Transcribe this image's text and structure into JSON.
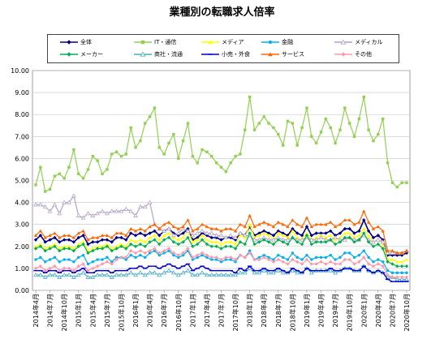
{
  "chart_data": {
    "type": "line",
    "title": "業種別の転職求人倍率",
    "xlabel": "",
    "ylabel": "",
    "ylim": [
      0,
      10
    ],
    "yticks": [
      "0.00",
      "1.00",
      "2.00",
      "3.00",
      "4.00",
      "5.00",
      "6.00",
      "7.00",
      "8.00",
      "9.00",
      "10.00"
    ],
    "grid": "horizontal",
    "legend_position": "top",
    "x": [
      "2014年4月",
      "2014年5月",
      "2014年6月",
      "2014年7月",
      "2014年8月",
      "2014年9月",
      "2014年10月",
      "2014年11月",
      "2014年12月",
      "2015年1月",
      "2015年2月",
      "2015年3月",
      "2015年4月",
      "2015年5月",
      "2015年6月",
      "2015年7月",
      "2015年8月",
      "2015年9月",
      "2015年10月",
      "2015年11月",
      "2015年12月",
      "2016年1月",
      "2016年2月",
      "2016年3月",
      "2016年4月",
      "2016年5月",
      "2016年6月",
      "2016年7月",
      "2016年8月",
      "2016年9月",
      "2016年10月",
      "2016年11月",
      "2016年12月",
      "2017年1月",
      "2017年2月",
      "2017年3月",
      "2017年4月",
      "2017年5月",
      "2017年6月",
      "2017年7月",
      "2017年8月",
      "2017年9月",
      "2017年10月",
      "2017年11月",
      "2017年12月",
      "2018年1月",
      "2018年2月",
      "2018年3月",
      "2018年4月",
      "2018年5月",
      "2018年6月",
      "2018年7月",
      "2018年8月",
      "2018年9月",
      "2018年10月",
      "2018年11月",
      "2018年12月",
      "2019年1月",
      "2019年2月",
      "2019年3月",
      "2019年4月",
      "2019年5月",
      "2019年6月",
      "2019年7月",
      "2019年8月",
      "2019年9月",
      "2019年10月",
      "2019年11月",
      "2019年12月",
      "2020年1月",
      "2020年2月",
      "2020年3月",
      "2020年4月",
      "2020年5月",
      "2020年6月",
      "2020年7月",
      "2020年8月",
      "2020年9月",
      "2020年10月"
    ],
    "x_tick_labels": [
      "2014年4月",
      "2014年7月",
      "2014年10月",
      "2015年1月",
      "2015年4月",
      "2015年7月",
      "2015年10月",
      "2016年1月",
      "2016年4月",
      "2016年7月",
      "2016年10月",
      "2017年1月",
      "2017年4月",
      "2017年7月",
      "2017年10月",
      "2018年1月",
      "2018年4月",
      "2018年7月",
      "2018年10月",
      "2019年1月",
      "2019年4月",
      "2019年7月",
      "2019年10月",
      "2020年1月",
      "2020年4月",
      "2020年7月",
      "2020年10月"
    ],
    "series": [
      {
        "name": "全体",
        "color": "#000080",
        "marker": "diamond",
        "values": [
          2.3,
          2.5,
          2.2,
          2.3,
          2.4,
          2.2,
          2.3,
          2.3,
          2.2,
          2.4,
          2.5,
          2.1,
          2.2,
          2.2,
          2.3,
          2.3,
          2.2,
          2.4,
          2.4,
          2.3,
          2.6,
          2.5,
          2.6,
          2.5,
          2.6,
          2.7,
          2.5,
          2.7,
          2.8,
          2.6,
          2.5,
          2.6,
          2.8,
          2.3,
          2.4,
          2.6,
          2.5,
          2.4,
          2.4,
          2.3,
          2.4,
          2.4,
          2.3,
          2.6,
          2.5,
          2.9,
          2.5,
          2.6,
          2.7,
          2.6,
          2.5,
          2.7,
          2.6,
          2.5,
          2.8,
          2.6,
          2.5,
          2.9,
          2.5,
          2.6,
          2.6,
          2.6,
          2.7,
          2.5,
          2.6,
          2.8,
          2.8,
          2.6,
          2.7,
          3.2,
          2.7,
          2.4,
          2.5,
          2.3,
          1.6,
          1.6,
          1.6,
          1.6,
          1.7
        ]
      },
      {
        "name": "IT・通信",
        "color": "#92d050",
        "marker": "square",
        "values": [
          4.8,
          5.6,
          4.5,
          4.6,
          5.2,
          5.3,
          5.1,
          5.6,
          6.4,
          5.3,
          5.1,
          5.5,
          6.1,
          5.9,
          5.3,
          5.5,
          6.2,
          6.3,
          6.1,
          6.2,
          7.4,
          6.5,
          6.8,
          7.6,
          7.9,
          8.3,
          6.5,
          6.2,
          6.7,
          7.1,
          6.0,
          6.8,
          7.6,
          6.1,
          5.8,
          6.4,
          6.3,
          6.1,
          5.8,
          5.6,
          5.4,
          5.8,
          6.1,
          6.2,
          7.3,
          8.8,
          7.3,
          7.6,
          7.9,
          7.6,
          7.4,
          7.1,
          6.6,
          7.7,
          7.6,
          6.6,
          7.4,
          8.3,
          7.0,
          6.7,
          7.2,
          7.8,
          7.4,
          6.7,
          7.3,
          8.3,
          7.6,
          7.0,
          7.8,
          8.8,
          7.3,
          6.8,
          7.1,
          7.8,
          5.8,
          4.9,
          4.7,
          4.9,
          4.9
        ]
      },
      {
        "name": "メディア",
        "color": "#ffff00",
        "marker": "triangle",
        "values": [
          2.0,
          2.1,
          1.9,
          2.0,
          2.1,
          1.9,
          2.0,
          2.0,
          1.9,
          2.1,
          2.2,
          1.8,
          1.9,
          2.0,
          2.0,
          2.1,
          1.9,
          2.0,
          2.1,
          2.0,
          2.3,
          2.2,
          2.3,
          2.2,
          2.4,
          2.5,
          2.3,
          2.5,
          2.6,
          2.4,
          2.3,
          2.4,
          2.7,
          2.2,
          2.3,
          2.5,
          2.3,
          2.2,
          2.2,
          2.1,
          2.2,
          2.2,
          2.1,
          2.5,
          2.4,
          3.0,
          2.4,
          2.5,
          2.6,
          2.5,
          2.3,
          2.6,
          2.5,
          2.4,
          2.7,
          2.4,
          2.3,
          2.6,
          2.3,
          2.4,
          2.5,
          2.4,
          2.5,
          2.3,
          2.4,
          2.6,
          2.6,
          2.4,
          2.5,
          2.8,
          2.5,
          2.2,
          2.3,
          2.1,
          1.4,
          1.4,
          1.3,
          1.3,
          1.4
        ]
      },
      {
        "name": "金融",
        "color": "#00b0f0",
        "marker": "circle",
        "values": [
          1.4,
          1.5,
          1.3,
          1.4,
          1.5,
          1.3,
          1.4,
          1.4,
          1.3,
          1.5,
          1.6,
          1.2,
          1.3,
          1.4,
          1.4,
          1.5,
          1.3,
          1.5,
          1.5,
          1.4,
          1.6,
          1.5,
          1.6,
          1.5,
          1.7,
          1.8,
          1.6,
          1.7,
          1.8,
          1.6,
          1.5,
          1.6,
          1.8,
          1.4,
          1.5,
          1.6,
          1.5,
          1.4,
          1.4,
          1.3,
          1.4,
          1.4,
          1.3,
          1.6,
          1.5,
          1.8,
          1.4,
          1.5,
          1.6,
          1.5,
          1.4,
          1.6,
          1.5,
          1.4,
          1.7,
          1.5,
          1.4,
          1.6,
          1.4,
          1.5,
          1.5,
          1.5,
          1.6,
          1.4,
          1.5,
          1.7,
          1.7,
          1.5,
          1.6,
          1.8,
          1.5,
          1.3,
          1.4,
          1.3,
          0.9,
          0.8,
          0.8,
          0.8,
          0.8
        ]
      },
      {
        "name": "メディカル",
        "color": "#b3a2c7",
        "marker": "triangle-open",
        "values": [
          3.9,
          3.9,
          3.8,
          3.6,
          3.9,
          3.5,
          4.0,
          4.0,
          4.3,
          3.4,
          3.3,
          3.5,
          3.4,
          3.5,
          3.6,
          3.5,
          3.6,
          3.6,
          3.6,
          3.7,
          3.6,
          3.4,
          3.8,
          3.8,
          4.0,
          3.0,
          2.8,
          2.7,
          2.8,
          2.5,
          2.6,
          2.8,
          2.7,
          2.5,
          2.6,
          2.7,
          2.6,
          2.6,
          2.5,
          2.5,
          2.4,
          2.5,
          2.4,
          2.6,
          2.5,
          2.5,
          2.3,
          2.3,
          2.4,
          2.3,
          2.3,
          2.4,
          2.3,
          2.3,
          2.4,
          2.3,
          2.3,
          2.4,
          2.3,
          2.3,
          2.4,
          2.3,
          2.3,
          2.4,
          2.3,
          2.3,
          2.4,
          2.3,
          2.3,
          2.5,
          2.3,
          2.2,
          2.3,
          2.2,
          1.7,
          1.7,
          1.7,
          1.7,
          1.8
        ]
      },
      {
        "name": "メーカー",
        "color": "#00b050",
        "marker": "diamond",
        "values": [
          1.9,
          2.0,
          1.8,
          1.9,
          2.0,
          1.8,
          1.9,
          1.9,
          1.8,
          2.0,
          2.1,
          1.7,
          1.8,
          1.9,
          1.9,
          2.0,
          1.8,
          1.9,
          2.0,
          1.9,
          2.1,
          2.0,
          2.1,
          2.0,
          2.2,
          2.3,
          2.1,
          2.3,
          2.4,
          2.2,
          2.1,
          2.2,
          2.4,
          2.0,
          2.1,
          2.3,
          2.1,
          2.0,
          2.0,
          1.9,
          2.0,
          2.0,
          1.9,
          2.2,
          2.1,
          2.6,
          2.1,
          2.2,
          2.3,
          2.2,
          2.1,
          2.3,
          2.2,
          2.1,
          2.4,
          2.2,
          2.1,
          2.5,
          2.1,
          2.2,
          2.2,
          2.2,
          2.3,
          2.1,
          2.2,
          2.4,
          2.4,
          2.2,
          2.3,
          2.6,
          2.2,
          2.0,
          2.1,
          1.9,
          1.3,
          1.2,
          1.1,
          1.1,
          1.1
        ]
      },
      {
        "name": "商社・流通",
        "color": "#4bacc6",
        "marker": "triangle-open",
        "values": [
          0.7,
          0.7,
          0.6,
          0.7,
          0.7,
          0.6,
          0.7,
          0.7,
          0.6,
          0.7,
          0.8,
          0.6,
          0.6,
          0.7,
          0.7,
          0.7,
          0.6,
          0.7,
          0.7,
          0.7,
          0.8,
          0.7,
          0.8,
          0.7,
          0.8,
          0.8,
          0.7,
          0.8,
          0.9,
          0.8,
          0.7,
          0.8,
          0.9,
          0.7,
          0.7,
          0.8,
          0.7,
          0.7,
          0.7,
          0.7,
          0.7,
          0.7,
          0.7,
          0.8,
          0.8,
          1.0,
          0.8,
          0.8,
          0.9,
          0.8,
          0.8,
          0.9,
          0.8,
          0.8,
          0.9,
          0.8,
          0.8,
          1.0,
          0.8,
          0.9,
          0.9,
          0.9,
          0.9,
          0.8,
          0.9,
          1.0,
          1.0,
          0.9,
          0.9,
          1.1,
          0.9,
          0.8,
          0.9,
          0.8,
          0.6,
          0.6,
          0.5,
          0.5,
          0.5
        ]
      },
      {
        "name": "小売・外食",
        "color": "#0000cc",
        "marker": "dash",
        "values": [
          0.9,
          0.9,
          0.8,
          0.9,
          0.9,
          0.8,
          0.9,
          0.9,
          0.8,
          0.9,
          1.0,
          0.8,
          0.8,
          0.9,
          0.9,
          0.9,
          0.8,
          0.9,
          0.9,
          0.9,
          1.0,
          1.0,
          1.1,
          1.0,
          1.1,
          1.1,
          1.0,
          1.1,
          1.2,
          1.1,
          1.0,
          1.1,
          1.2,
          0.9,
          1.0,
          1.1,
          1.0,
          0.9,
          0.9,
          0.9,
          0.9,
          0.9,
          0.8,
          1.0,
          0.9,
          1.1,
          0.9,
          0.9,
          1.0,
          0.9,
          0.9,
          1.0,
          0.9,
          0.8,
          1.0,
          0.9,
          0.8,
          1.0,
          0.9,
          0.9,
          0.9,
          0.9,
          1.0,
          0.9,
          0.9,
          1.0,
          1.0,
          0.9,
          0.9,
          1.1,
          0.9,
          0.8,
          0.9,
          0.8,
          0.5,
          0.4,
          0.4,
          0.4,
          0.4
        ]
      },
      {
        "name": "サービス",
        "color": "#ff6600",
        "marker": "triangle",
        "values": [
          2.5,
          2.7,
          2.4,
          2.5,
          2.6,
          2.4,
          2.5,
          2.5,
          2.4,
          2.6,
          2.7,
          2.3,
          2.4,
          2.4,
          2.5,
          2.5,
          2.4,
          2.6,
          2.6,
          2.5,
          2.8,
          2.7,
          2.8,
          2.7,
          2.9,
          3.0,
          2.8,
          3.0,
          3.1,
          2.9,
          2.8,
          2.9,
          3.2,
          2.7,
          2.8,
          3.0,
          2.9,
          2.8,
          2.8,
          2.7,
          2.8,
          2.8,
          2.7,
          3.0,
          2.9,
          3.4,
          2.9,
          3.0,
          3.1,
          3.0,
          2.9,
          3.1,
          3.0,
          2.9,
          3.2,
          3.0,
          2.9,
          3.3,
          2.9,
          3.0,
          3.0,
          3.0,
          3.1,
          2.9,
          3.0,
          3.2,
          3.2,
          3.0,
          3.1,
          3.6,
          3.1,
          2.8,
          2.9,
          2.7,
          1.8,
          1.8,
          1.7,
          1.7,
          1.8
        ]
      },
      {
        "name": "その他",
        "color": "#ff99aa",
        "marker": "diamond",
        "values": [
          1.0,
          1.1,
          0.9,
          1.0,
          1.1,
          0.9,
          1.0,
          1.0,
          0.9,
          1.1,
          1.2,
          0.9,
          1.0,
          1.1,
          1.2,
          1.3,
          1.2,
          1.4,
          1.5,
          1.5,
          1.8,
          1.7,
          1.8,
          1.7,
          1.8,
          1.9,
          1.7,
          1.8,
          1.9,
          1.7,
          1.6,
          1.7,
          1.9,
          1.5,
          1.6,
          1.7,
          1.6,
          1.5,
          1.5,
          1.4,
          1.5,
          1.5,
          1.4,
          1.6,
          1.5,
          1.7,
          1.4,
          1.4,
          1.5,
          1.4,
          1.3,
          1.4,
          1.3,
          1.2,
          1.4,
          1.3,
          1.2,
          1.4,
          1.2,
          1.2,
          1.3,
          1.2,
          1.3,
          1.2,
          1.2,
          1.4,
          1.4,
          1.2,
          1.3,
          1.5,
          1.2,
          1.1,
          1.2,
          1.1,
          0.7,
          0.6,
          0.6,
          0.6,
          0.6
        ]
      }
    ]
  }
}
